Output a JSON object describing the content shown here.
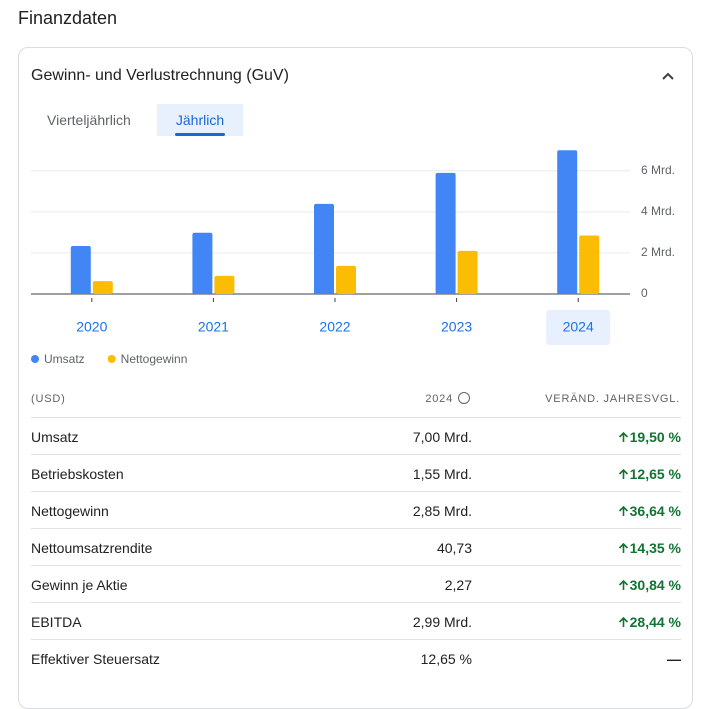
{
  "header": {
    "title": "Finanzdaten",
    "section": "Gewinn- und Verlustrechnung (GuV)"
  },
  "tabs": [
    "Vierteljährlich",
    "Jährlich"
  ],
  "chart_data": {
    "type": "bar",
    "categories": [
      "2020",
      "2021",
      "2022",
      "2023",
      "2024"
    ],
    "series": [
      {
        "name": "Umsatz",
        "color": "#4285f4",
        "values": [
          2.34,
          2.98,
          4.39,
          5.9,
          7.0
        ]
      },
      {
        "name": "Nettogewinn",
        "color": "#fbbc04",
        "values": [
          0.63,
          0.88,
          1.37,
          2.1,
          2.85
        ]
      }
    ],
    "ylim": [
      0,
      7.5
    ],
    "yticks": [
      0,
      {
        "value": 2,
        "label": "2 Mrd."
      },
      {
        "value": 4,
        "label": "4 Mrd."
      },
      {
        "value": 6,
        "label": "6 Mrd."
      }
    ],
    "grid": true
  },
  "table": {
    "header": [
      "(USD)",
      "2024",
      "VERÄND. JAHRESVGL."
    ],
    "rows": [
      [
        "Umsatz",
        "7,00 Mrd.",
        "19,50 %"
      ],
      [
        "Betriebskosten",
        "1,55 Mrd.",
        "12,65 %"
      ],
      [
        "Nettogewinn",
        "2,85 Mrd.",
        "36,64 %"
      ],
      [
        "Nettoumsatzrendite",
        "40,73",
        "14,35 %"
      ],
      [
        "Gewinn je Aktie",
        "2,27",
        "30,84 %"
      ],
      [
        "EBITDA",
        "2,99 Mrd.",
        "28,44 %"
      ],
      [
        "Effektiver Steuersatz",
        "12,65 %",
        "—"
      ]
    ]
  }
}
